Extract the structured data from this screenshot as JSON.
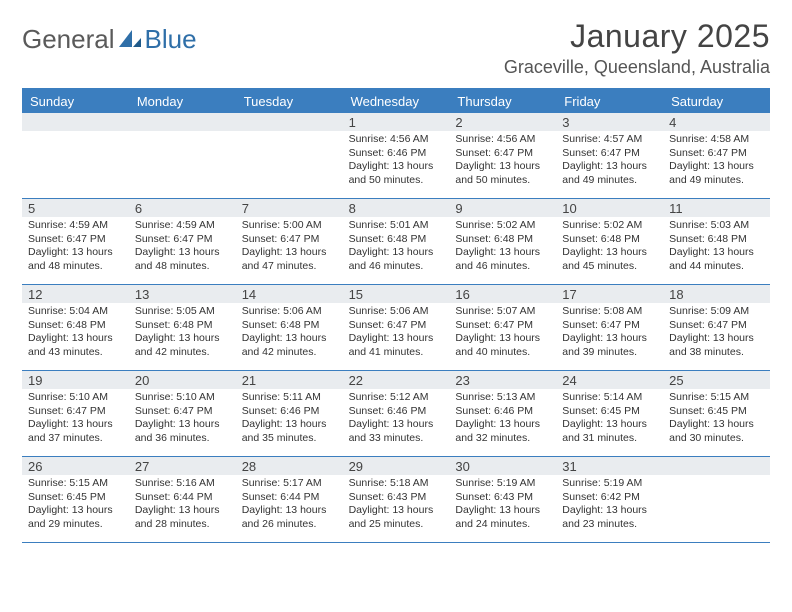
{
  "brand": {
    "part1": "General",
    "part2": "Blue"
  },
  "title": "January 2025",
  "location": "Graceville, Queensland, Australia",
  "header_bg": "#3b7ebf",
  "daynum_bg": "#e9ecef",
  "text_color": "#333333",
  "day_names": [
    "Sunday",
    "Monday",
    "Tuesday",
    "Wednesday",
    "Thursday",
    "Friday",
    "Saturday"
  ],
  "weeks": [
    [
      null,
      null,
      null,
      {
        "d": "1",
        "sr": "4:56 AM",
        "ss": "6:46 PM",
        "dl": "13 hours and 50 minutes."
      },
      {
        "d": "2",
        "sr": "4:56 AM",
        "ss": "6:47 PM",
        "dl": "13 hours and 50 minutes."
      },
      {
        "d": "3",
        "sr": "4:57 AM",
        "ss": "6:47 PM",
        "dl": "13 hours and 49 minutes."
      },
      {
        "d": "4",
        "sr": "4:58 AM",
        "ss": "6:47 PM",
        "dl": "13 hours and 49 minutes."
      }
    ],
    [
      {
        "d": "5",
        "sr": "4:59 AM",
        "ss": "6:47 PM",
        "dl": "13 hours and 48 minutes."
      },
      {
        "d": "6",
        "sr": "4:59 AM",
        "ss": "6:47 PM",
        "dl": "13 hours and 48 minutes."
      },
      {
        "d": "7",
        "sr": "5:00 AM",
        "ss": "6:47 PM",
        "dl": "13 hours and 47 minutes."
      },
      {
        "d": "8",
        "sr": "5:01 AM",
        "ss": "6:48 PM",
        "dl": "13 hours and 46 minutes."
      },
      {
        "d": "9",
        "sr": "5:02 AM",
        "ss": "6:48 PM",
        "dl": "13 hours and 46 minutes."
      },
      {
        "d": "10",
        "sr": "5:02 AM",
        "ss": "6:48 PM",
        "dl": "13 hours and 45 minutes."
      },
      {
        "d": "11",
        "sr": "5:03 AM",
        "ss": "6:48 PM",
        "dl": "13 hours and 44 minutes."
      }
    ],
    [
      {
        "d": "12",
        "sr": "5:04 AM",
        "ss": "6:48 PM",
        "dl": "13 hours and 43 minutes."
      },
      {
        "d": "13",
        "sr": "5:05 AM",
        "ss": "6:48 PM",
        "dl": "13 hours and 42 minutes."
      },
      {
        "d": "14",
        "sr": "5:06 AM",
        "ss": "6:48 PM",
        "dl": "13 hours and 42 minutes."
      },
      {
        "d": "15",
        "sr": "5:06 AM",
        "ss": "6:47 PM",
        "dl": "13 hours and 41 minutes."
      },
      {
        "d": "16",
        "sr": "5:07 AM",
        "ss": "6:47 PM",
        "dl": "13 hours and 40 minutes."
      },
      {
        "d": "17",
        "sr": "5:08 AM",
        "ss": "6:47 PM",
        "dl": "13 hours and 39 minutes."
      },
      {
        "d": "18",
        "sr": "5:09 AM",
        "ss": "6:47 PM",
        "dl": "13 hours and 38 minutes."
      }
    ],
    [
      {
        "d": "19",
        "sr": "5:10 AM",
        "ss": "6:47 PM",
        "dl": "13 hours and 37 minutes."
      },
      {
        "d": "20",
        "sr": "5:10 AM",
        "ss": "6:47 PM",
        "dl": "13 hours and 36 minutes."
      },
      {
        "d": "21",
        "sr": "5:11 AM",
        "ss": "6:46 PM",
        "dl": "13 hours and 35 minutes."
      },
      {
        "d": "22",
        "sr": "5:12 AM",
        "ss": "6:46 PM",
        "dl": "13 hours and 33 minutes."
      },
      {
        "d": "23",
        "sr": "5:13 AM",
        "ss": "6:46 PM",
        "dl": "13 hours and 32 minutes."
      },
      {
        "d": "24",
        "sr": "5:14 AM",
        "ss": "6:45 PM",
        "dl": "13 hours and 31 minutes."
      },
      {
        "d": "25",
        "sr": "5:15 AM",
        "ss": "6:45 PM",
        "dl": "13 hours and 30 minutes."
      }
    ],
    [
      {
        "d": "26",
        "sr": "5:15 AM",
        "ss": "6:45 PM",
        "dl": "13 hours and 29 minutes."
      },
      {
        "d": "27",
        "sr": "5:16 AM",
        "ss": "6:44 PM",
        "dl": "13 hours and 28 minutes."
      },
      {
        "d": "28",
        "sr": "5:17 AM",
        "ss": "6:44 PM",
        "dl": "13 hours and 26 minutes."
      },
      {
        "d": "29",
        "sr": "5:18 AM",
        "ss": "6:43 PM",
        "dl": "13 hours and 25 minutes."
      },
      {
        "d": "30",
        "sr": "5:19 AM",
        "ss": "6:43 PM",
        "dl": "13 hours and 24 minutes."
      },
      {
        "d": "31",
        "sr": "5:19 AM",
        "ss": "6:42 PM",
        "dl": "13 hours and 23 minutes."
      },
      null
    ]
  ],
  "labels": {
    "sunrise": "Sunrise:",
    "sunset": "Sunset:",
    "daylight": "Daylight:"
  }
}
